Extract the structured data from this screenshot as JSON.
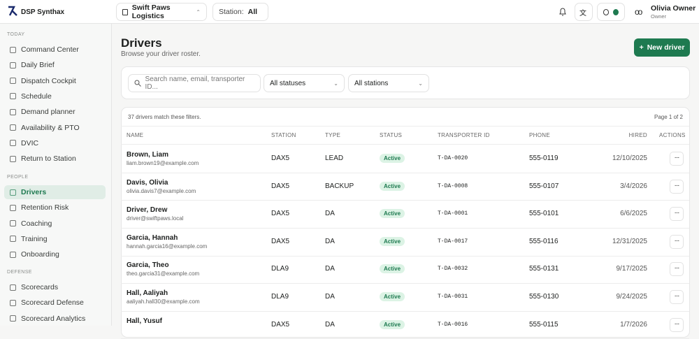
{
  "app": {
    "name": "DSP Synthax"
  },
  "topbar": {
    "org": "Swift Paws Logistics",
    "station_label": "Station:",
    "station_value": "All",
    "user_name": "Olivia Owner",
    "user_role": "Owner"
  },
  "sidebar": {
    "sections": [
      {
        "title": "TODAY",
        "items": [
          {
            "label": "Command Center"
          },
          {
            "label": "Daily Brief"
          },
          {
            "label": "Dispatch Cockpit"
          },
          {
            "label": "Schedule"
          },
          {
            "label": "Demand planner"
          },
          {
            "label": "Availability & PTO"
          },
          {
            "label": "DVIC"
          },
          {
            "label": "Return to Station"
          }
        ]
      },
      {
        "title": "PEOPLE",
        "items": [
          {
            "label": "Drivers",
            "active": true
          },
          {
            "label": "Retention Risk"
          },
          {
            "label": "Coaching"
          },
          {
            "label": "Training"
          },
          {
            "label": "Onboarding"
          }
        ]
      },
      {
        "title": "DEFENSE",
        "items": [
          {
            "label": "Scorecards"
          },
          {
            "label": "Scorecard Defense"
          },
          {
            "label": "Scorecard Analytics"
          }
        ]
      }
    ]
  },
  "page": {
    "title": "Drivers",
    "subtitle": "Browse your driver roster.",
    "new_button": "New driver"
  },
  "filters": {
    "search_placeholder": "Search name, email, transporter ID...",
    "status": "All statuses",
    "station": "All stations"
  },
  "table": {
    "count_text": "37 drivers match these filters.",
    "page_text": "Page 1 of 2",
    "columns": [
      "NAME",
      "STATION",
      "TYPE",
      "STATUS",
      "TRANSPORTER ID",
      "PHONE",
      "HIRED",
      "ACTIONS"
    ],
    "rows": [
      {
        "name": "Brown, Liam",
        "email": "liam.brown19@example.com",
        "station": "DAX5",
        "type": "LEAD",
        "status": "Active",
        "transporter_id": "T-DA-0020",
        "phone": "555-0119",
        "hired": "12/10/2025"
      },
      {
        "name": "Davis, Olivia",
        "email": "olivia.davis7@example.com",
        "station": "DAX5",
        "type": "BACKUP",
        "status": "Active",
        "transporter_id": "T-DA-0008",
        "phone": "555-0107",
        "hired": "3/4/2026"
      },
      {
        "name": "Driver, Drew",
        "email": "driver@swiftpaws.local",
        "station": "DAX5",
        "type": "DA",
        "status": "Active",
        "transporter_id": "T-DA-0001",
        "phone": "555-0101",
        "hired": "6/6/2025"
      },
      {
        "name": "Garcia, Hannah",
        "email": "hannah.garcia16@example.com",
        "station": "DAX5",
        "type": "DA",
        "status": "Active",
        "transporter_id": "T-DA-0017",
        "phone": "555-0116",
        "hired": "12/31/2025"
      },
      {
        "name": "Garcia, Theo",
        "email": "theo.garcia31@example.com",
        "station": "DLA9",
        "type": "DA",
        "status": "Active",
        "transporter_id": "T-DA-0032",
        "phone": "555-0131",
        "hired": "9/17/2025"
      },
      {
        "name": "Hall, Aaliyah",
        "email": "aaliyah.hall30@example.com",
        "station": "DLA9",
        "type": "DA",
        "status": "Active",
        "transporter_id": "T-DA-0031",
        "phone": "555-0130",
        "hired": "9/24/2025"
      },
      {
        "name": "Hall, Yusuf",
        "station": "DAX5",
        "type": "DA",
        "status": "Active",
        "transporter_id": "T-DA-0016",
        "phone": "555-0115",
        "hired": "1/7/2026"
      }
    ]
  }
}
